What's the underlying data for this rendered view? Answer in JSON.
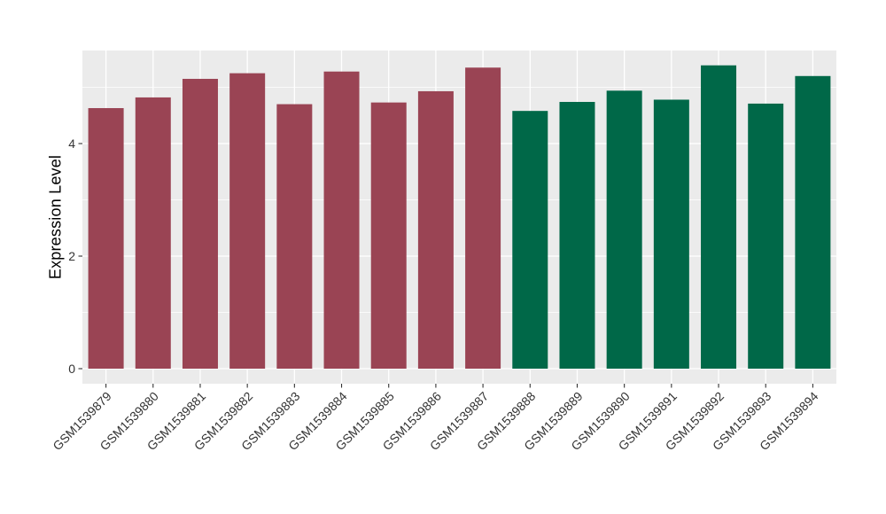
{
  "figure": {
    "background_color": "#FFFFFF",
    "panel_color": "#EBEBEB",
    "grid_color": "#FFFFFF",
    "tick_color": "#333333",
    "tick_text_color": "#333333",
    "axis_title_color": "#000000"
  },
  "chart_data": {
    "type": "bar",
    "title": "",
    "xlabel": "",
    "ylabel": "Expression Level",
    "ylim": [
      0,
      5.66
    ],
    "yticks": [
      0,
      2,
      4
    ],
    "ytick_labels": [
      "0",
      "2",
      "4"
    ],
    "yticks_minor": [
      1,
      3,
      5
    ],
    "grid": "white major/minor gridlines on gray panel",
    "legend_position": "none",
    "x_tick_rotation_deg": 45,
    "categories": [
      "GSM1539879",
      "GSM1539880",
      "GSM1539881",
      "GSM1539882",
      "GSM1539883",
      "GSM1539884",
      "GSM1539885",
      "GSM1539886",
      "GSM1539887",
      "GSM1539888",
      "GSM1539889",
      "GSM1539890",
      "GSM1539891",
      "GSM1539892",
      "GSM1539893",
      "GSM1539894"
    ],
    "values": [
      4.63,
      4.82,
      5.15,
      5.25,
      4.7,
      5.28,
      4.73,
      4.93,
      5.35,
      4.58,
      4.74,
      4.94,
      4.78,
      5.39,
      4.71,
      5.2
    ],
    "bar_colors": [
      "#9A4454",
      "#9A4454",
      "#9A4454",
      "#9A4454",
      "#9A4454",
      "#9A4454",
      "#9A4454",
      "#9A4454",
      "#9A4454",
      "#006848",
      "#006848",
      "#006848",
      "#006848",
      "#006848",
      "#006848",
      "#006848"
    ]
  }
}
